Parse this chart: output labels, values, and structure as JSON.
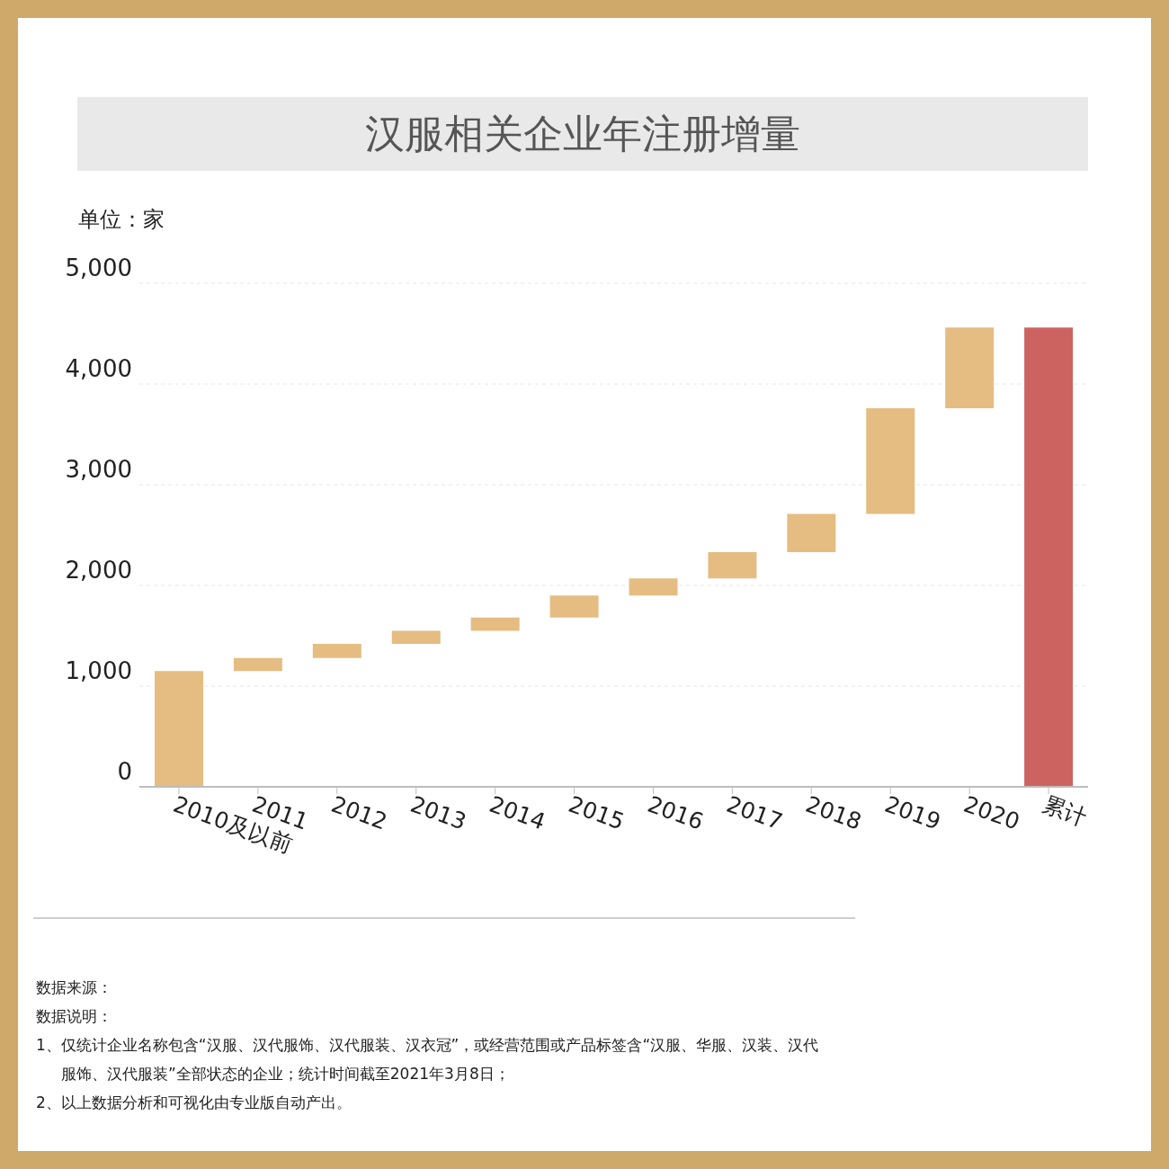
{
  "chart_data": {
    "type": "bar",
    "title": "汉服相关企业年注册增量",
    "ylabel": "单位：家",
    "categories": [
      "2010及以前",
      "2011",
      "2012",
      "2013",
      "2014",
      "2015",
      "2016",
      "2017",
      "2018",
      "2019",
      "2020",
      "累计"
    ],
    "values": [
      1150,
      130,
      140,
      130,
      130,
      220,
      170,
      260,
      380,
      1050,
      800,
      4560
    ],
    "base": [
      0,
      1150,
      1280,
      1420,
      1550,
      1680,
      1900,
      2070,
      2330,
      2710,
      3760,
      0
    ],
    "colors": [
      "#e5bc82",
      "#e5bc82",
      "#e5bc82",
      "#e5bc82",
      "#e5bc82",
      "#e5bc82",
      "#e5bc82",
      "#e5bc82",
      "#e5bc82",
      "#e5bc82",
      "#e5bc82",
      "#cd6361"
    ],
    "ylim": [
      0,
      5000
    ],
    "yticks": [
      0,
      {
        "value": 1000,
        "label": "1,000"
      },
      {
        "value": 2000,
        "label": "2,000"
      },
      {
        "value": 3000,
        "label": "3,000"
      },
      {
        "value": 4000,
        "label": "4,000"
      },
      {
        "value": 5000,
        "label": "5,000"
      }
    ],
    "grid": "y",
    "legend": false,
    "annotations": [
      "数据来源：",
      "数据说明：",
      "1、仅统计企业名称包含“汉服、汉代服饰、汉代服装、汉衣冠”，或经营范围或产品标签含“汉服、华服、汉装、汉代服饰、汉代服装”全部状态的企业；统计时间截至2021年3月8日；",
      "2、以上数据分析和可视化由专业版自动产出。"
    ]
  }
}
